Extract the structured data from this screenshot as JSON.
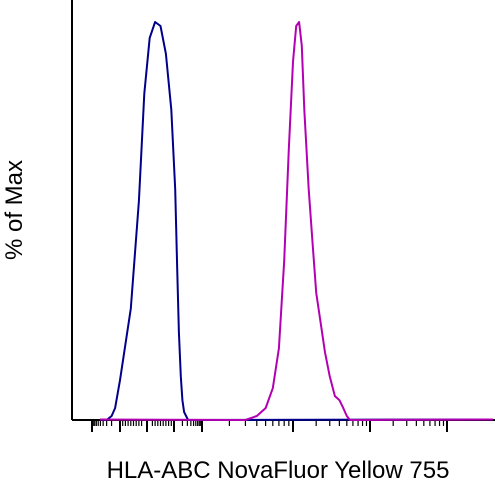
{
  "chart_data": {
    "type": "line",
    "title": "",
    "xlabel": "HLA-ABC NovaFluor Yellow 755",
    "ylabel": "% of Max",
    "x_scale": "logicle",
    "x_tick_labels": [],
    "ylim": [
      0,
      100
    ],
    "grid": false,
    "legend": "none",
    "series": [
      {
        "color": "#00008B",
        "x": [
          -300,
          -200,
          -150,
          -100,
          -60,
          -30,
          -10,
          10,
          30,
          50,
          70,
          90,
          110,
          130,
          150,
          175,
          200,
          230,
          270,
          320,
          380
        ],
        "y": [
          0,
          1,
          3,
          10,
          28,
          55,
          82,
          96,
          100,
          99,
          92,
          78,
          58,
          38,
          22,
          11,
          5,
          2,
          1,
          0,
          0
        ]
      },
      {
        "color": "#B300B3",
        "x": [
          3000,
          4000,
          5000,
          6000,
          7000,
          8000,
          9000,
          10000,
          11000,
          12000,
          13000,
          14000,
          16000,
          18000,
          20000,
          23000,
          26000,
          30000,
          35000,
          40000,
          45000,
          50000,
          55000,
          60000
        ],
        "y": [
          0,
          1,
          3,
          8,
          18,
          40,
          68,
          90,
          99,
          100,
          94,
          78,
          58,
          44,
          32,
          24,
          17,
          11,
          6,
          5,
          3,
          1,
          0,
          0
        ]
      }
    ]
  }
}
